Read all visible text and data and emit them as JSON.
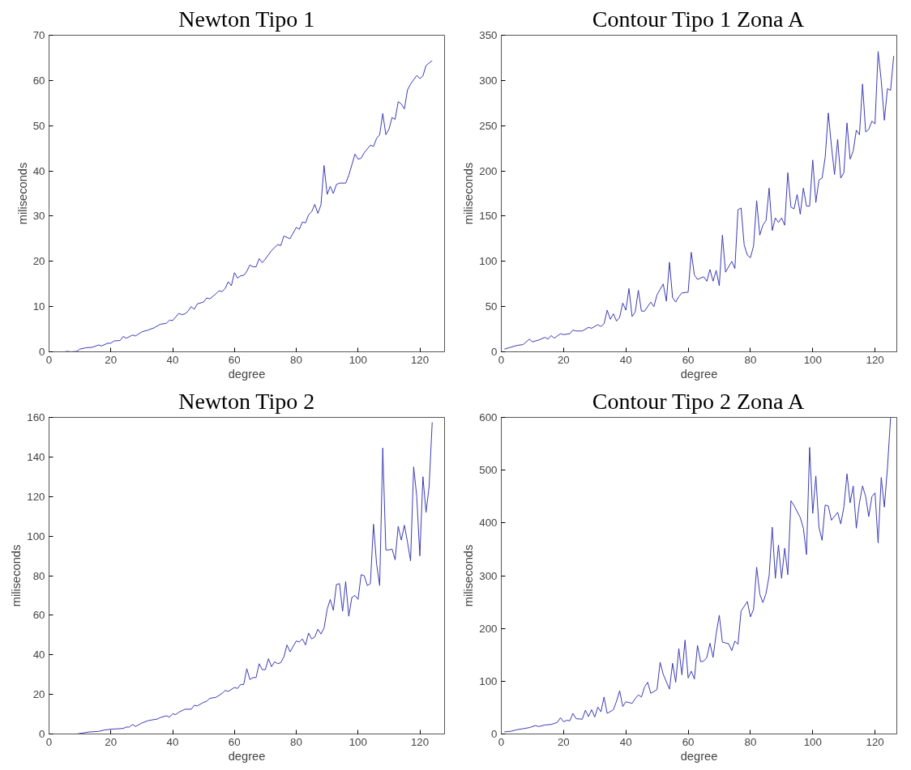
{
  "chart_data": [
    {
      "type": "line",
      "title": "Newton Tipo 1",
      "xlabel": "degree",
      "ylabel": "miliseconds",
      "xlim": [
        0,
        128
      ],
      "xticks": [
        0,
        20,
        40,
        60,
        80,
        100,
        120
      ],
      "ylim": [
        0,
        70
      ],
      "yticks": [
        0,
        10,
        20,
        30,
        40,
        50,
        60,
        70
      ],
      "grid": false,
      "series": [
        {
          "color": "#3c3cb4",
          "x": [
            5,
            6,
            7,
            9,
            10,
            12,
            14,
            16,
            17,
            19,
            20,
            21,
            23,
            24,
            25,
            27,
            28,
            30,
            32,
            34,
            36,
            38,
            39,
            40,
            42,
            43,
            44,
            45,
            46,
            47,
            48,
            50,
            51,
            52,
            54,
            55,
            56,
            57,
            58,
            59,
            60,
            61,
            62,
            63,
            64,
            65,
            66,
            67,
            68,
            69,
            70,
            72,
            74,
            75,
            76,
            78,
            80,
            81,
            82,
            83,
            84,
            85,
            86,
            87,
            88,
            89,
            90,
            91,
            92,
            93,
            94,
            96,
            97,
            99,
            100,
            101,
            102,
            104,
            105,
            106,
            107,
            108,
            109,
            110,
            111,
            112,
            113,
            114,
            115,
            116,
            117,
            119,
            120,
            121,
            122,
            124
          ],
          "values": [
            0,
            0.1,
            0,
            0.1,
            0.6,
            0.9,
            1.0,
            1.5,
            1.3,
            1.9,
            1.9,
            2.4,
            2.5,
            3.4,
            3.0,
            3.7,
            3.5,
            4.4,
            4.8,
            5.3,
            6.1,
            6.3,
            7.0,
            6.9,
            8.5,
            8.2,
            8.4,
            9.0,
            10.0,
            9.4,
            10.6,
            11.0,
            11.9,
            11.7,
            12.8,
            13.5,
            13.3,
            14.0,
            15.5,
            14.6,
            17.5,
            16.3,
            16.8,
            16.9,
            17.8,
            19.2,
            18.8,
            18.8,
            20.6,
            19.7,
            20.5,
            22.4,
            23.7,
            23.5,
            25.6,
            25.0,
            27.5,
            27.1,
            28.7,
            28.5,
            30.3,
            31.0,
            32.6,
            30.6,
            32.5,
            41.2,
            34.8,
            36.6,
            35.0,
            37.0,
            37.3,
            37.3,
            39.0,
            43.7,
            42.6,
            42.8,
            44.0,
            45.7,
            45.4,
            47.2,
            48.0,
            52.7,
            48.0,
            49.2,
            51.8,
            51.4,
            55.3,
            54.8,
            53.7,
            57.9,
            59.2,
            61.1,
            60.4,
            61.0,
            63.3,
            64.4
          ]
        }
      ]
    },
    {
      "type": "line",
      "title": "Contour Tipo 1 Zona A",
      "xlabel": "degree",
      "ylabel": "miliseconds",
      "xlim": [
        0,
        127
      ],
      "xticks": [
        0,
        20,
        40,
        60,
        80,
        100,
        120
      ],
      "ylim": [
        0,
        350
      ],
      "yticks": [
        0,
        50,
        100,
        150,
        200,
        250,
        300,
        350
      ],
      "grid": false,
      "series": [
        {
          "color": "#3c3cb4",
          "x": [
            1,
            3,
            5,
            7,
            9,
            10,
            12,
            14,
            15,
            16,
            17,
            19,
            20,
            22,
            23,
            24,
            26,
            28,
            29,
            31,
            32,
            33,
            34,
            35,
            36,
            37,
            38,
            39,
            40,
            41,
            42,
            43,
            44,
            45,
            46,
            48,
            49,
            50,
            52,
            53,
            54,
            55,
            56,
            57,
            58,
            60,
            61,
            62,
            63,
            65,
            66,
            67,
            68,
            69,
            70,
            71,
            72,
            74,
            75,
            76,
            77,
            78,
            79,
            80,
            81,
            82,
            83,
            84,
            85,
            86,
            87,
            88,
            89,
            90,
            91,
            92,
            93,
            94,
            95,
            96,
            97,
            98,
            99,
            100,
            101,
            102,
            103,
            104,
            105,
            106,
            107,
            108,
            109,
            110,
            111,
            112,
            113,
            114,
            115,
            116,
            117,
            118,
            119,
            120,
            121,
            122,
            123,
            124,
            125,
            126
          ],
          "values": [
            3,
            5,
            7,
            8,
            14,
            11,
            13,
            16,
            14,
            18,
            15,
            20,
            19,
            20,
            24,
            23,
            23,
            27,
            26,
            30,
            28,
            31,
            46,
            36,
            42,
            34,
            38,
            54,
            46,
            70,
            39,
            44,
            68,
            45,
            45,
            55,
            50,
            63,
            75,
            56,
            99,
            60,
            55,
            61,
            65,
            66,
            110,
            85,
            80,
            83,
            78,
            91,
            78,
            90,
            73,
            129,
            88,
            100,
            92,
            157,
            159,
            118,
            107,
            104,
            117,
            167,
            129,
            140,
            145,
            181,
            134,
            148,
            143,
            148,
            140,
            198,
            160,
            158,
            174,
            152,
            181,
            161,
            161,
            212,
            165,
            190,
            192,
            215,
            264,
            228,
            196,
            235,
            192,
            198,
            253,
            213,
            222,
            245,
            240,
            296,
            243,
            246,
            255,
            252,
            332,
            300,
            256,
            291,
            289,
            327
          ]
        }
      ]
    },
    {
      "type": "line",
      "title": "Newton Tipo 2",
      "xlabel": "degree",
      "ylabel": "miliseconds",
      "xlim": [
        0,
        128
      ],
      "xticks": [
        0,
        20,
        40,
        60,
        80,
        100,
        120
      ],
      "ylim": [
        0,
        160
      ],
      "yticks": [
        0,
        20,
        40,
        60,
        80,
        100,
        120,
        140,
        160
      ],
      "grid": false,
      "series": [
        {
          "color": "#3c3cb4",
          "x": [
            9,
            11,
            13,
            16,
            18,
            20,
            22,
            24,
            25,
            26,
            27,
            28,
            30,
            32,
            34,
            35,
            36,
            38,
            39,
            40,
            41,
            42,
            44,
            46,
            47,
            48,
            50,
            51,
            52,
            54,
            56,
            57,
            58,
            60,
            61,
            62,
            63,
            64,
            65,
            66,
            67,
            68,
            69,
            70,
            71,
            72,
            73,
            74,
            75,
            76,
            77,
            78,
            80,
            81,
            82,
            83,
            84,
            85,
            86,
            87,
            88,
            89,
            90,
            91,
            92,
            93,
            94,
            95,
            96,
            97,
            98,
            99,
            100,
            101,
            102,
            103,
            104,
            105,
            106,
            107,
            108,
            109,
            110,
            111,
            112,
            113,
            114,
            115,
            116,
            117,
            118,
            119,
            120,
            121,
            122,
            123,
            124
          ],
          "values": [
            0,
            0.5,
            1,
            1.3,
            2,
            2.4,
            2.6,
            2.8,
            3.5,
            3.5,
            4.8,
            3.8,
            5.5,
            6.7,
            7.3,
            7.5,
            8.3,
            9.2,
            8.5,
            10.2,
            9.8,
            11,
            12.5,
            12.5,
            14.5,
            14.2,
            16,
            16.5,
            18,
            18.5,
            20.5,
            22,
            21.5,
            23.5,
            23,
            25,
            25,
            33,
            27.5,
            28.5,
            28.5,
            35.5,
            32.5,
            32.5,
            38,
            34,
            36.5,
            35.5,
            36,
            39,
            45,
            41.5,
            47,
            46.5,
            48,
            45,
            51,
            48,
            49,
            53,
            50.5,
            53.5,
            63,
            68,
            62.5,
            75.5,
            76,
            62,
            77,
            59.5,
            69,
            70,
            68,
            80.5,
            80,
            75,
            76,
            106,
            86,
            75,
            144.5,
            93,
            93,
            93.5,
            88,
            105,
            98,
            105.5,
            97,
            87.5,
            135,
            120,
            90,
            130,
            112,
            125,
            157.5
          ]
        }
      ]
    },
    {
      "type": "line",
      "title": "Contour Tipo 2 Zona A",
      "xlabel": "degree",
      "ylabel": "miliseconds",
      "xlim": [
        0,
        127
      ],
      "xticks": [
        0,
        20,
        40,
        60,
        80,
        100,
        120
      ],
      "ylim": [
        0,
        600
      ],
      "yticks": [
        0,
        100,
        200,
        300,
        400,
        500,
        600
      ],
      "grid": false,
      "series": [
        {
          "color": "#3c3cb4",
          "x": [
            1,
            3,
            5,
            7,
            9,
            11,
            12,
            14,
            16,
            18,
            19,
            20,
            21,
            22,
            23,
            24,
            26,
            27,
            28,
            29,
            30,
            31,
            32,
            33,
            34,
            36,
            37,
            38,
            39,
            40,
            42,
            43,
            44,
            45,
            46,
            47,
            48,
            50,
            51,
            52,
            54,
            55,
            56,
            57,
            58,
            59,
            60,
            61,
            62,
            63,
            64,
            65,
            66,
            67,
            68,
            69,
            70,
            71,
            73,
            74,
            75,
            76,
            77,
            79,
            80,
            81,
            82,
            83,
            84,
            85,
            86,
            87,
            88,
            89,
            90,
            91,
            92,
            93,
            94,
            96,
            97,
            98,
            99,
            100,
            101,
            102,
            103,
            104,
            105,
            106,
            108,
            109,
            110,
            111,
            112,
            113,
            114,
            115,
            116,
            117,
            118,
            119,
            120,
            121,
            122,
            123,
            124,
            125
          ],
          "values": [
            4,
            5,
            8,
            10,
            12,
            16,
            14,
            17,
            18,
            22,
            31,
            23,
            26,
            25,
            39,
            29,
            28,
            45,
            33,
            46,
            32,
            51,
            42,
            70,
            39,
            46,
            62,
            82,
            52,
            61,
            58,
            67,
            74,
            70,
            89,
            98,
            77,
            84,
            136,
            113,
            85,
            134,
            98,
            162,
            112,
            178,
            106,
            119,
            104,
            168,
            137,
            138,
            145,
            172,
            145,
            190,
            225,
            174,
            171,
            158,
            176,
            170,
            233,
            251,
            222,
            236,
            316,
            265,
            249,
            266,
            300,
            392,
            295,
            358,
            295,
            352,
            302,
            442,
            433,
            410,
            390,
            340,
            543,
            418,
            489,
            392,
            367,
            434,
            432,
            405,
            420,
            398,
            430,
            493,
            438,
            470,
            390,
            438,
            470,
            450,
            412,
            450,
            457,
            362,
            486,
            430,
            505,
            600
          ]
        }
      ]
    }
  ]
}
